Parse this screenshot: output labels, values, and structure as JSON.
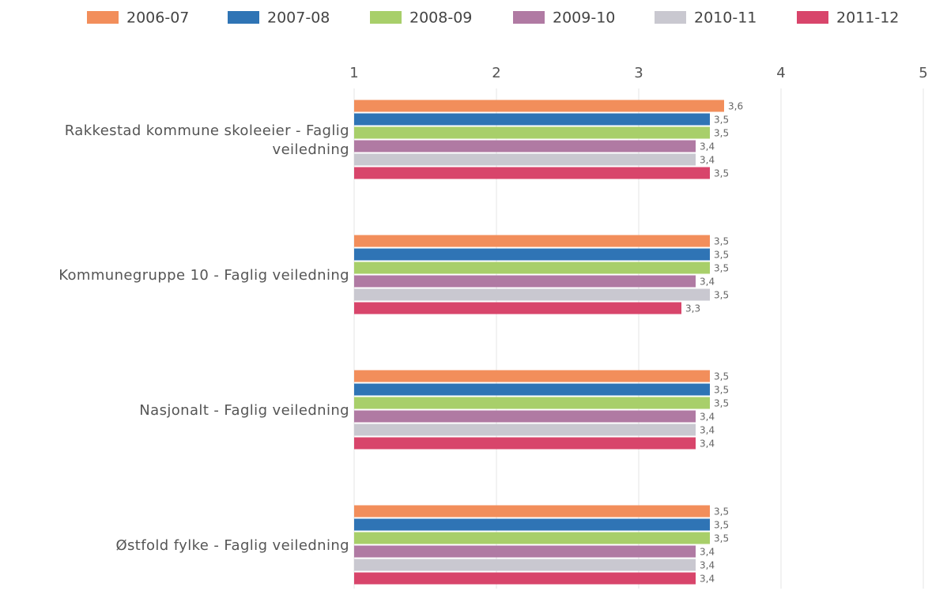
{
  "chart_data": {
    "type": "barh",
    "categories": [
      "Rakkestad kommune skoleeier - Faglig veiledning",
      "Kommunegruppe 10 - Faglig veiledning",
      "Nasjonalt - Faglig veiledning",
      "Østfold fylke - Faglig veiledning"
    ],
    "series": [
      {
        "name": "2006-07",
        "color": "#f28e5b",
        "values": [
          3.6,
          3.5,
          3.5,
          3.5
        ],
        "value_labels": [
          "3,6",
          "3,5",
          "3,5",
          "3,5"
        ]
      },
      {
        "name": "2007-08",
        "color": "#2f74b5",
        "values": [
          3.5,
          3.5,
          3.5,
          3.5
        ],
        "value_labels": [
          "3,5",
          "3,5",
          "3,5",
          "3,5"
        ]
      },
      {
        "name": "2008-09",
        "color": "#a8cf6a",
        "values": [
          3.5,
          3.5,
          3.5,
          3.5
        ],
        "value_labels": [
          "3,5",
          "3,5",
          "3,5",
          "3,5"
        ]
      },
      {
        "name": "2009-10",
        "color": "#b07aa3",
        "values": [
          3.4,
          3.4,
          3.4,
          3.4
        ],
        "value_labels": [
          "3,4",
          "3,4",
          "3,4",
          "3,4"
        ]
      },
      {
        "name": "2010-11",
        "color": "#c9c8d0",
        "values": [
          3.4,
          3.5,
          3.4,
          3.4
        ],
        "value_labels": [
          "3,4",
          "3,5",
          "3,4",
          "3,4"
        ]
      },
      {
        "name": "2011-12",
        "color": "#d8456b",
        "values": [
          3.5,
          3.3,
          3.4,
          3.4
        ],
        "value_labels": [
          "3,5",
          "3,3",
          "3,4",
          "3,4"
        ]
      }
    ],
    "xlim": [
      1,
      5
    ],
    "xticks": [
      1,
      2,
      3,
      4,
      5
    ],
    "grid": true,
    "legend": "top"
  }
}
